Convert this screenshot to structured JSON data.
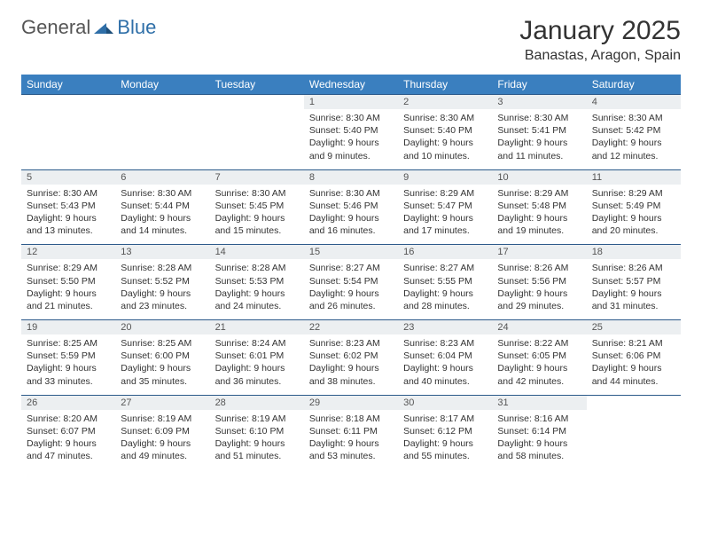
{
  "brand": {
    "part1": "General",
    "part2": "Blue"
  },
  "title": "January 2025",
  "location": "Banastas, Aragon, Spain",
  "colors": {
    "header_bg": "#3a7fbf",
    "header_text": "#ffffff",
    "daynum_bg": "#eceff1",
    "row_border": "#2c5a8a",
    "text": "#333333",
    "logo_gray": "#555555",
    "logo_blue": "#2f6fa8",
    "page_bg": "#ffffff"
  },
  "fonts": {
    "title_size_pt": 22,
    "location_size_pt": 12,
    "header_size_pt": 9,
    "daynum_size_pt": 8,
    "cell_size_pt": 8
  },
  "day_headers": [
    "Sunday",
    "Monday",
    "Tuesday",
    "Wednesday",
    "Thursday",
    "Friday",
    "Saturday"
  ],
  "weeks": [
    {
      "nums": [
        "",
        "",
        "",
        "1",
        "2",
        "3",
        "4"
      ],
      "cells": [
        {
          "empty": true
        },
        {
          "empty": true
        },
        {
          "empty": true
        },
        {
          "sunrise": "Sunrise: 8:30 AM",
          "sunset": "Sunset: 5:40 PM",
          "daylight": "Daylight: 9 hours and 9 minutes."
        },
        {
          "sunrise": "Sunrise: 8:30 AM",
          "sunset": "Sunset: 5:40 PM",
          "daylight": "Daylight: 9 hours and 10 minutes."
        },
        {
          "sunrise": "Sunrise: 8:30 AM",
          "sunset": "Sunset: 5:41 PM",
          "daylight": "Daylight: 9 hours and 11 minutes."
        },
        {
          "sunrise": "Sunrise: 8:30 AM",
          "sunset": "Sunset: 5:42 PM",
          "daylight": "Daylight: 9 hours and 12 minutes."
        }
      ]
    },
    {
      "nums": [
        "5",
        "6",
        "7",
        "8",
        "9",
        "10",
        "11"
      ],
      "cells": [
        {
          "sunrise": "Sunrise: 8:30 AM",
          "sunset": "Sunset: 5:43 PM",
          "daylight": "Daylight: 9 hours and 13 minutes."
        },
        {
          "sunrise": "Sunrise: 8:30 AM",
          "sunset": "Sunset: 5:44 PM",
          "daylight": "Daylight: 9 hours and 14 minutes."
        },
        {
          "sunrise": "Sunrise: 8:30 AM",
          "sunset": "Sunset: 5:45 PM",
          "daylight": "Daylight: 9 hours and 15 minutes."
        },
        {
          "sunrise": "Sunrise: 8:30 AM",
          "sunset": "Sunset: 5:46 PM",
          "daylight": "Daylight: 9 hours and 16 minutes."
        },
        {
          "sunrise": "Sunrise: 8:29 AM",
          "sunset": "Sunset: 5:47 PM",
          "daylight": "Daylight: 9 hours and 17 minutes."
        },
        {
          "sunrise": "Sunrise: 8:29 AM",
          "sunset": "Sunset: 5:48 PM",
          "daylight": "Daylight: 9 hours and 19 minutes."
        },
        {
          "sunrise": "Sunrise: 8:29 AM",
          "sunset": "Sunset: 5:49 PM",
          "daylight": "Daylight: 9 hours and 20 minutes."
        }
      ]
    },
    {
      "nums": [
        "12",
        "13",
        "14",
        "15",
        "16",
        "17",
        "18"
      ],
      "cells": [
        {
          "sunrise": "Sunrise: 8:29 AM",
          "sunset": "Sunset: 5:50 PM",
          "daylight": "Daylight: 9 hours and 21 minutes."
        },
        {
          "sunrise": "Sunrise: 8:28 AM",
          "sunset": "Sunset: 5:52 PM",
          "daylight": "Daylight: 9 hours and 23 minutes."
        },
        {
          "sunrise": "Sunrise: 8:28 AM",
          "sunset": "Sunset: 5:53 PM",
          "daylight": "Daylight: 9 hours and 24 minutes."
        },
        {
          "sunrise": "Sunrise: 8:27 AM",
          "sunset": "Sunset: 5:54 PM",
          "daylight": "Daylight: 9 hours and 26 minutes."
        },
        {
          "sunrise": "Sunrise: 8:27 AM",
          "sunset": "Sunset: 5:55 PM",
          "daylight": "Daylight: 9 hours and 28 minutes."
        },
        {
          "sunrise": "Sunrise: 8:26 AM",
          "sunset": "Sunset: 5:56 PM",
          "daylight": "Daylight: 9 hours and 29 minutes."
        },
        {
          "sunrise": "Sunrise: 8:26 AM",
          "sunset": "Sunset: 5:57 PM",
          "daylight": "Daylight: 9 hours and 31 minutes."
        }
      ]
    },
    {
      "nums": [
        "19",
        "20",
        "21",
        "22",
        "23",
        "24",
        "25"
      ],
      "cells": [
        {
          "sunrise": "Sunrise: 8:25 AM",
          "sunset": "Sunset: 5:59 PM",
          "daylight": "Daylight: 9 hours and 33 minutes."
        },
        {
          "sunrise": "Sunrise: 8:25 AM",
          "sunset": "Sunset: 6:00 PM",
          "daylight": "Daylight: 9 hours and 35 minutes."
        },
        {
          "sunrise": "Sunrise: 8:24 AM",
          "sunset": "Sunset: 6:01 PM",
          "daylight": "Daylight: 9 hours and 36 minutes."
        },
        {
          "sunrise": "Sunrise: 8:23 AM",
          "sunset": "Sunset: 6:02 PM",
          "daylight": "Daylight: 9 hours and 38 minutes."
        },
        {
          "sunrise": "Sunrise: 8:23 AM",
          "sunset": "Sunset: 6:04 PM",
          "daylight": "Daylight: 9 hours and 40 minutes."
        },
        {
          "sunrise": "Sunrise: 8:22 AM",
          "sunset": "Sunset: 6:05 PM",
          "daylight": "Daylight: 9 hours and 42 minutes."
        },
        {
          "sunrise": "Sunrise: 8:21 AM",
          "sunset": "Sunset: 6:06 PM",
          "daylight": "Daylight: 9 hours and 44 minutes."
        }
      ]
    },
    {
      "nums": [
        "26",
        "27",
        "28",
        "29",
        "30",
        "31",
        ""
      ],
      "cells": [
        {
          "sunrise": "Sunrise: 8:20 AM",
          "sunset": "Sunset: 6:07 PM",
          "daylight": "Daylight: 9 hours and 47 minutes."
        },
        {
          "sunrise": "Sunrise: 8:19 AM",
          "sunset": "Sunset: 6:09 PM",
          "daylight": "Daylight: 9 hours and 49 minutes."
        },
        {
          "sunrise": "Sunrise: 8:19 AM",
          "sunset": "Sunset: 6:10 PM",
          "daylight": "Daylight: 9 hours and 51 minutes."
        },
        {
          "sunrise": "Sunrise: 8:18 AM",
          "sunset": "Sunset: 6:11 PM",
          "daylight": "Daylight: 9 hours and 53 minutes."
        },
        {
          "sunrise": "Sunrise: 8:17 AM",
          "sunset": "Sunset: 6:12 PM",
          "daylight": "Daylight: 9 hours and 55 minutes."
        },
        {
          "sunrise": "Sunrise: 8:16 AM",
          "sunset": "Sunset: 6:14 PM",
          "daylight": "Daylight: 9 hours and 58 minutes."
        },
        {
          "empty": true
        }
      ]
    }
  ]
}
